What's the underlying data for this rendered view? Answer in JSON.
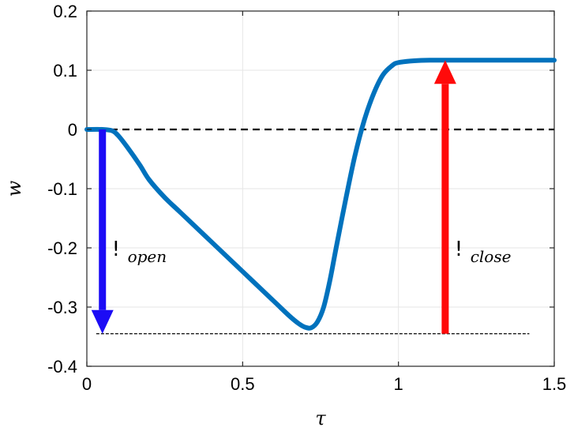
{
  "chart_data": {
    "type": "line",
    "xlabel": "τ",
    "ylabel": "w",
    "xlim": [
      0,
      1.5
    ],
    "ylim": [
      -0.4,
      0.2
    ],
    "grid": true,
    "x_ticks": [
      0,
      0.5,
      1,
      1.5
    ],
    "x_tick_labels": [
      "0",
      "0.5",
      "1",
      "1.5"
    ],
    "y_ticks": [
      0.2,
      0.1,
      0,
      -0.1,
      -0.2,
      -0.3,
      -0.4
    ],
    "y_tick_labels": [
      "0.2",
      "0.1",
      "0",
      "-0.1",
      "-0.2",
      "-0.3",
      "-0.4"
    ],
    "series": [
      {
        "color": "#0072bd",
        "x": [
          0,
          0.05,
          0.08,
          0.1,
          0.13,
          0.17,
          0.2,
          0.25,
          0.3,
          0.4,
          0.5,
          0.6,
          0.65,
          0.68,
          0.7,
          0.72,
          0.74,
          0.76,
          0.78,
          0.8,
          0.83,
          0.86,
          0.89,
          0.92,
          0.95,
          0.98,
          1.0,
          1.05,
          1.1,
          1.2,
          1.3,
          1.4,
          1.5
        ],
        "y": [
          0,
          0,
          -0.002,
          -0.01,
          -0.03,
          -0.06,
          -0.085,
          -0.115,
          -0.14,
          -0.19,
          -0.24,
          -0.29,
          -0.315,
          -0.328,
          -0.334,
          -0.335,
          -0.325,
          -0.3,
          -0.255,
          -0.2,
          -0.12,
          -0.045,
          0.015,
          0.06,
          0.092,
          0.108,
          0.113,
          0.116,
          0.117,
          0.117,
          0.117,
          0.117,
          0.117
        ]
      }
    ],
    "reference_lines": [
      {
        "style": "dashed",
        "y": 0,
        "x": [
          0,
          1.5
        ]
      },
      {
        "style": "dotted",
        "y": -0.345,
        "x": [
          0.03,
          1.42
        ]
      }
    ],
    "arrows": [
      {
        "color": "#1c0cf5",
        "x": 0.05,
        "y_from": 0,
        "y_to": -0.345,
        "label_mark": "!",
        "label_sub": "open",
        "label_x": 0.08,
        "label_y": -0.2
      },
      {
        "color": "#ff0a0a",
        "x": 1.15,
        "y_from": -0.345,
        "y_to": 0.117,
        "label_mark": "!",
        "label_sub": "close",
        "label_x": 1.18,
        "label_y": -0.2
      }
    ]
  }
}
